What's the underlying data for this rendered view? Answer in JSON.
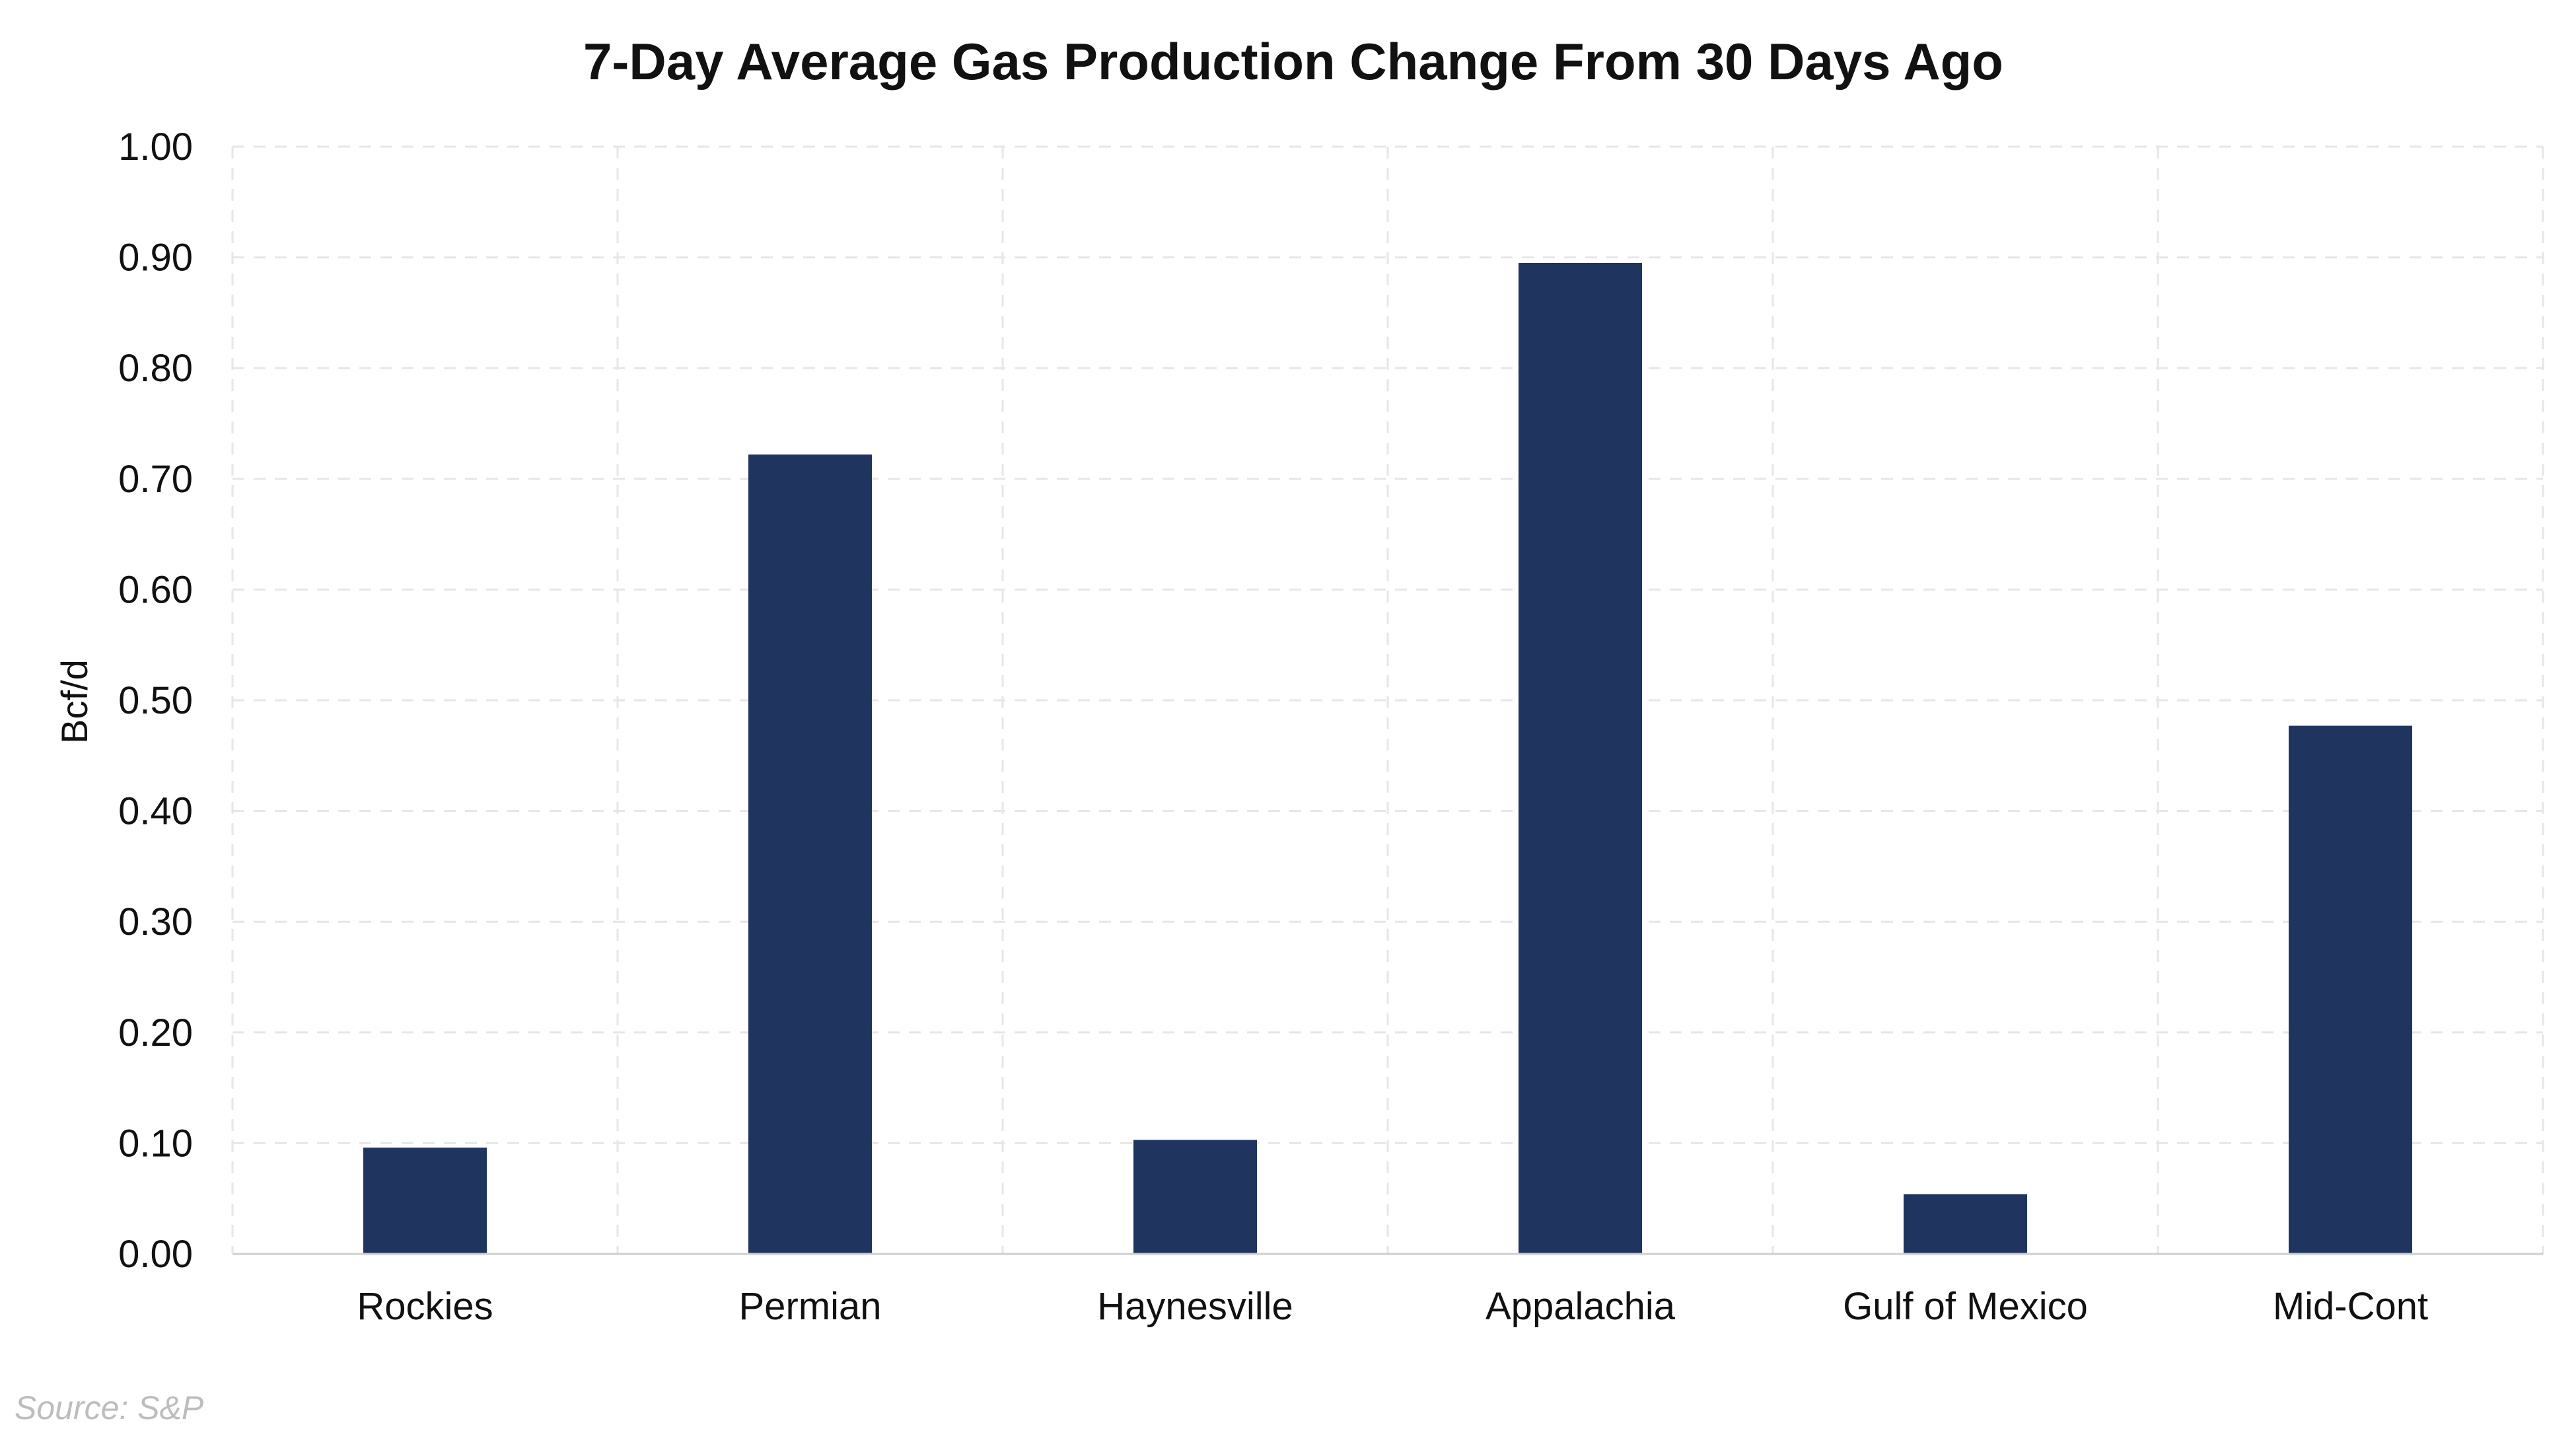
{
  "chart_data": {
    "type": "bar",
    "title": "7-Day Average Gas Production Change From 30 Days Ago",
    "xlabel": "",
    "ylabel": "Bcf/d",
    "categories": [
      "Rockies",
      "Permian",
      "Haynesville",
      "Appalachia",
      "Gulf of Mexico",
      "Mid-Cont"
    ],
    "values": [
      0.096,
      0.722,
      0.103,
      0.895,
      0.054,
      0.477
    ],
    "ylim": [
      0,
      1
    ],
    "yticks": [
      "0.00",
      "0.10",
      "0.20",
      "0.30",
      "0.40",
      "0.50",
      "0.60",
      "0.70",
      "0.80",
      "0.90",
      "1.00"
    ],
    "bar_color": "#1f3560",
    "grid": true,
    "legend": "none"
  },
  "source": "Source: S&P"
}
